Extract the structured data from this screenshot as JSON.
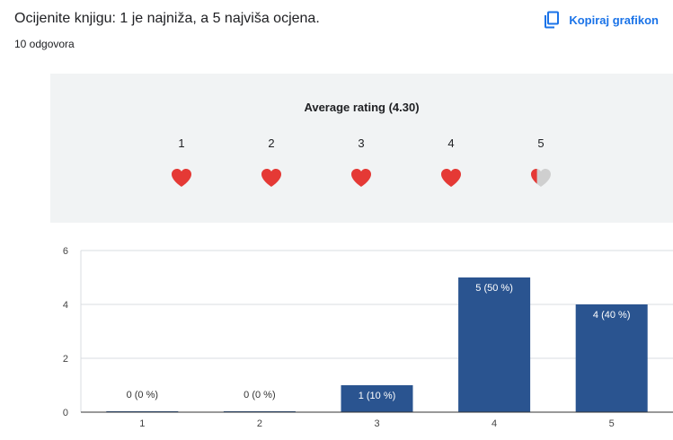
{
  "header": {
    "question": "Ocijenite knjigu: 1 je najniža, a 5 najviša ocjena.",
    "responses": "10 odgovora",
    "copy_label": "Kopiraj grafikon"
  },
  "rating": {
    "title": "Average rating (4.30)",
    "average": 4.3,
    "scale": [
      "1",
      "2",
      "3",
      "4",
      "5"
    ],
    "heart_fill": [
      1,
      1,
      1,
      1,
      0.3
    ],
    "heart_color": "#e53935",
    "heart_empty_color": "#cfcfcf"
  },
  "chart_data": {
    "type": "bar",
    "categories": [
      "1",
      "2",
      "3",
      "4",
      "5"
    ],
    "values": [
      0,
      0,
      1,
      5,
      4
    ],
    "labels": [
      "0 (0 %)",
      "0 (0 %)",
      "1 (10 %)",
      "5 (50 %)",
      "4 (40 %)"
    ],
    "ylim": [
      0,
      6
    ],
    "yticks": [
      "0",
      "2",
      "4",
      "6"
    ],
    "grid": true,
    "bar_color": "#2a5490"
  }
}
